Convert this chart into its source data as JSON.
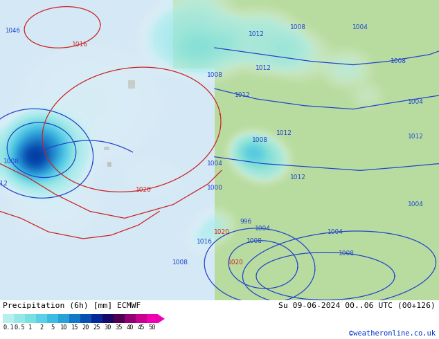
{
  "title_left": "Precipitation (6h) [mm] ECMWF",
  "title_right": "Su 09-06-2024 00..06 UTC (00+126)",
  "credit": "©weatheronline.co.uk",
  "colorbar_values": [
    "0.1",
    "0.5",
    "1",
    "2",
    "5",
    "10",
    "15",
    "20",
    "25",
    "30",
    "35",
    "40",
    "45",
    "50"
  ],
  "colorbar_colors": [
    "#b4f0f0",
    "#96e8e8",
    "#78e0e0",
    "#5ad0e8",
    "#3cbce0",
    "#28a0d8",
    "#1478c8",
    "#0850b0",
    "#042898",
    "#180868",
    "#500050",
    "#900070",
    "#c80090",
    "#f000b0"
  ],
  "bg_ocean": "#e8f0f8",
  "bg_land": "#c8e8a0",
  "bottom_bg": "#e8e8e8",
  "fig_width": 6.34,
  "fig_height": 4.9,
  "dpi": 100,
  "map_bg_color": "#d8eaf0",
  "contour_blue": "#2244cc",
  "contour_red": "#cc2222",
  "land_green": "#b8dca0",
  "land_gray": "#b0b0a8",
  "ocean_color": "#d8eaf5"
}
